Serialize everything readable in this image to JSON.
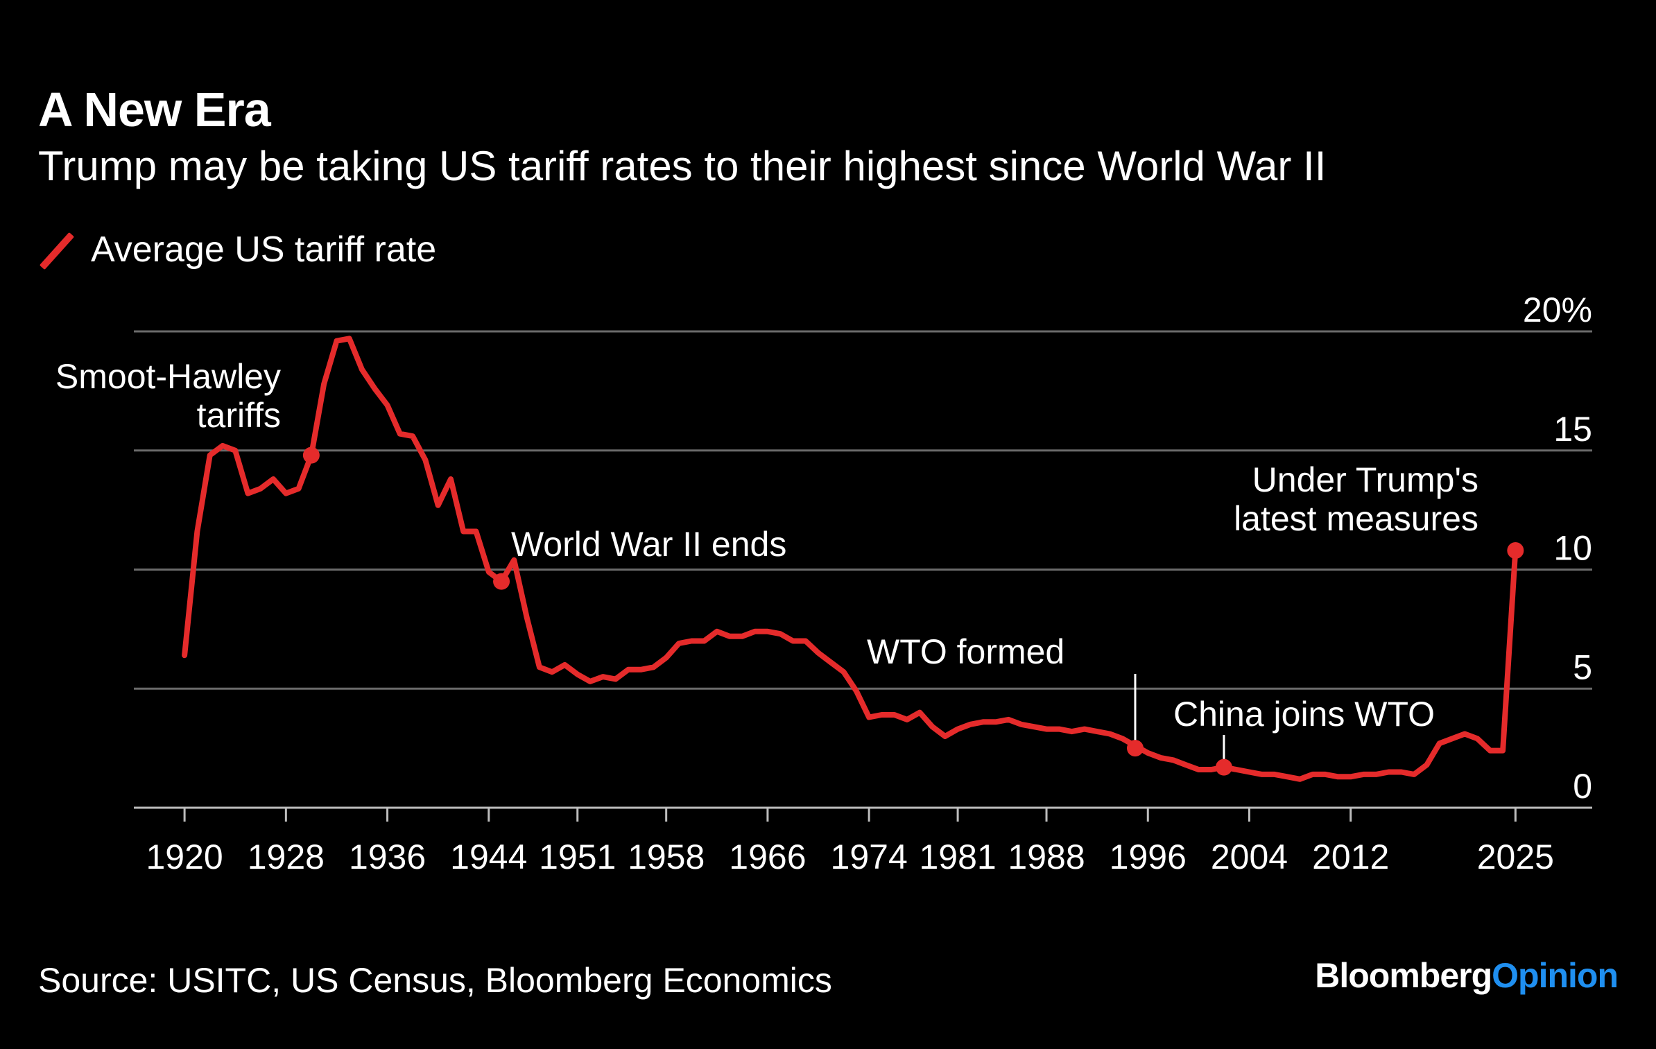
{
  "header": {
    "title": "A New Era",
    "subtitle": "Trump may be taking US tariff rates to their highest since World War II"
  },
  "legend": {
    "label": "Average US tariff rate"
  },
  "footer": {
    "source": "Source: USITC, US Census, Bloomberg Economics",
    "brand_main": "Bloomberg",
    "brand_accent": "Opinion"
  },
  "colors": {
    "background": "#000000",
    "line": "#e52b2b",
    "grid": "#6b6b6b",
    "brand_accent": "#1f8ff0"
  },
  "chart_data": {
    "type": "line",
    "title": "A New Era",
    "subtitle": "Trump may be taking US tariff rates to their highest since World War II",
    "xlabel": "",
    "ylabel": "",
    "xlim": [
      1916,
      2031
    ],
    "ylim": [
      0,
      20
    ],
    "x_ticks": [
      {
        "x": 1920,
        "label": "1920"
      },
      {
        "x": 1928,
        "label": "1928"
      },
      {
        "x": 1936,
        "label": "1936"
      },
      {
        "x": 1944,
        "label": "1944"
      },
      {
        "x": 1951,
        "label": "1951"
      },
      {
        "x": 1958,
        "label": "1958"
      },
      {
        "x": 1966,
        "label": "1966"
      },
      {
        "x": 1974,
        "label": "1974"
      },
      {
        "x": 1981,
        "label": "1981"
      },
      {
        "x": 1988,
        "label": "1988"
      },
      {
        "x": 1996,
        "label": "1996"
      },
      {
        "x": 2004,
        "label": "2004"
      },
      {
        "x": 2012,
        "label": "2012"
      },
      {
        "x": 2025,
        "label": "2025"
      }
    ],
    "y_ticks": [
      {
        "y": 0,
        "label": "0"
      },
      {
        "y": 5,
        "label": "5"
      },
      {
        "y": 10,
        "label": "10"
      },
      {
        "y": 15,
        "label": "15"
      },
      {
        "y": 20,
        "label": "20%"
      }
    ],
    "grid": true,
    "series": [
      {
        "name": "Average US tariff rate",
        "x": [
          1920,
          1921,
          1922,
          1923,
          1924,
          1925,
          1926,
          1927,
          1928,
          1929,
          1930,
          1931,
          1932,
          1933,
          1934,
          1935,
          1936,
          1937,
          1938,
          1939,
          1940,
          1941,
          1942,
          1943,
          1944,
          1945,
          1946,
          1947,
          1948,
          1949,
          1950,
          1951,
          1952,
          1953,
          1954,
          1955,
          1956,
          1957,
          1958,
          1959,
          1960,
          1961,
          1962,
          1963,
          1964,
          1965,
          1966,
          1967,
          1968,
          1969,
          1970,
          1971,
          1972,
          1973,
          1974,
          1975,
          1976,
          1977,
          1978,
          1979,
          1980,
          1981,
          1982,
          1983,
          1984,
          1985,
          1986,
          1987,
          1988,
          1989,
          1990,
          1991,
          1992,
          1993,
          1994,
          1995,
          1996,
          1997,
          1998,
          1999,
          2000,
          2001,
          2002,
          2003,
          2004,
          2005,
          2006,
          2007,
          2008,
          2009,
          2010,
          2011,
          2012,
          2013,
          2014,
          2015,
          2016,
          2017,
          2018,
          2019,
          2020,
          2021,
          2022,
          2023,
          2024,
          2025
        ],
        "y": [
          6.4,
          11.6,
          14.8,
          15.2,
          15.0,
          13.2,
          13.4,
          13.8,
          13.2,
          13.4,
          14.8,
          17.8,
          19.6,
          19.7,
          18.4,
          17.6,
          16.9,
          15.7,
          15.6,
          14.6,
          12.7,
          13.8,
          11.6,
          11.6,
          9.9,
          9.5,
          10.4,
          8.0,
          5.9,
          5.7,
          6.0,
          5.6,
          5.3,
          5.5,
          5.4,
          5.8,
          5.8,
          5.9,
          6.3,
          6.9,
          7.0,
          7.0,
          7.4,
          7.2,
          7.2,
          7.4,
          7.4,
          7.3,
          7.0,
          7.0,
          6.5,
          6.1,
          5.7,
          4.9,
          3.8,
          3.9,
          3.9,
          3.7,
          4.0,
          3.4,
          3.0,
          3.3,
          3.5,
          3.6,
          3.6,
          3.7,
          3.5,
          3.4,
          3.3,
          3.3,
          3.2,
          3.3,
          3.2,
          3.1,
          2.9,
          2.6,
          2.3,
          2.1,
          2.0,
          1.8,
          1.6,
          1.6,
          1.7,
          1.6,
          1.5,
          1.4,
          1.4,
          1.3,
          1.2,
          1.4,
          1.4,
          1.3,
          1.3,
          1.4,
          1.4,
          1.5,
          1.5,
          1.4,
          1.8,
          2.7,
          2.9,
          3.1,
          2.9,
          2.4,
          2.4,
          10.8
        ]
      }
    ],
    "annotations": [
      {
        "text_lines": [
          "Smoot-Hawley",
          "tariffs"
        ],
        "x": 1930,
        "y": 14.8,
        "marker": true
      },
      {
        "text_lines": [
          "World War II ends"
        ],
        "x": 1945,
        "y": 9.5,
        "marker": true
      },
      {
        "text_lines": [
          "WTO formed"
        ],
        "x": 1995,
        "y": 2.5,
        "marker": true,
        "leader_line": true
      },
      {
        "text_lines": [
          "China joins WTO"
        ],
        "x": 2002,
        "y": 1.7,
        "marker": true,
        "leader_line": true
      },
      {
        "text_lines": [
          "Under Trump's",
          "latest measures"
        ],
        "x": 2025,
        "y": 10.8,
        "marker": true
      }
    ]
  }
}
